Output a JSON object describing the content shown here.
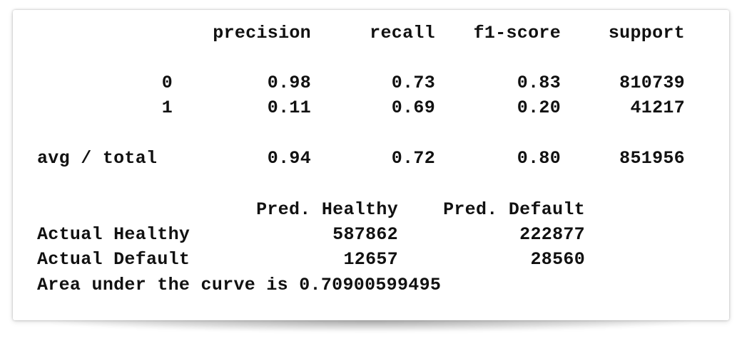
{
  "report": {
    "headers": [
      "precision",
      "recall",
      "f1-score",
      "support"
    ],
    "rows": [
      {
        "label": "0",
        "precision": "0.98",
        "recall": "0.73",
        "f1": "0.83",
        "support": "810739"
      },
      {
        "label": "1",
        "precision": "0.11",
        "recall": "0.69",
        "f1": "0.20",
        "support": "41217"
      },
      {
        "label": "avg / total",
        "precision": "0.94",
        "recall": "0.72",
        "f1": "0.80",
        "support": "851956"
      }
    ]
  },
  "confusion": {
    "col_headers": [
      "Pred. Healthy",
      "Pred. Default"
    ],
    "rows": [
      {
        "label": "Actual Healthy",
        "values": [
          "587862",
          "222877"
        ]
      },
      {
        "label": "Actual Default",
        "values": [
          "12657",
          "28560"
        ]
      }
    ]
  },
  "auc_line": "Area under the curve is 0.70900599495"
}
